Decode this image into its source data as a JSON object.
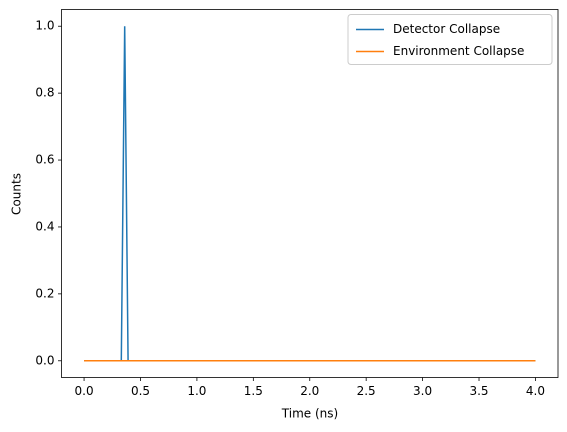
{
  "chart_data": {
    "type": "line",
    "x": [
      0,
      0.33,
      0.36,
      0.39,
      4
    ],
    "series": [
      {
        "name": "Detector Collapse",
        "color": "#1f77b4",
        "values": [
          0,
          0,
          1,
          0,
          0
        ]
      },
      {
        "name": "Environment Collapse",
        "color": "#ff7f0e",
        "values": [
          0,
          0,
          0,
          0,
          0
        ]
      }
    ],
    "xlabel": "Time (ns)",
    "ylabel": "Counts",
    "xlim": [
      -0.2,
      4.2
    ],
    "xticks": [
      {
        "value": 0,
        "label": "0.0"
      },
      {
        "value": 0.5,
        "label": "0.5"
      },
      {
        "value": 1,
        "label": "1.0"
      },
      {
        "value": 1.5,
        "label": "1.5"
      },
      {
        "value": 2,
        "label": "2.0"
      },
      {
        "value": 2.5,
        "label": "2.5"
      },
      {
        "value": 3,
        "label": "3.0"
      },
      {
        "value": 3.5,
        "label": "3.5"
      },
      {
        "value": 4,
        "label": "4.0"
      }
    ],
    "ylim": [
      -0.05,
      1.05
    ],
    "yticks": [
      {
        "value": 0,
        "label": "0.0"
      },
      {
        "value": 0.2,
        "label": "0.2"
      },
      {
        "value": 0.4,
        "label": "0.4"
      },
      {
        "value": 0.6,
        "label": "0.6"
      },
      {
        "value": 0.8,
        "label": "0.8"
      },
      {
        "value": 1,
        "label": "1.0"
      }
    ],
    "legend": "upper right"
  }
}
